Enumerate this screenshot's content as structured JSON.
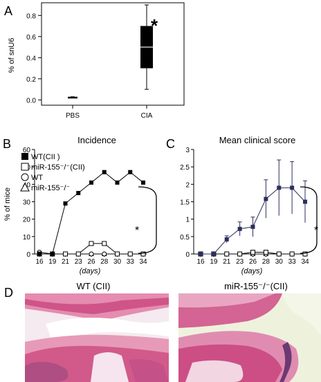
{
  "panel_letters": {
    "a": "A",
    "b": "B",
    "c": "C",
    "d": "D"
  },
  "panel_a": {
    "ylabel": "% of snU6",
    "star": "*"
  },
  "panel_b": {
    "title": "Incidence",
    "ylabel": "% of mice",
    "xlabel": "(days)",
    "star": "*",
    "legend": [
      "WT(CII )",
      "miR-155⁻/⁻(CII)",
      "WT",
      "miR-155⁻/⁻"
    ]
  },
  "panel_c": {
    "title": "Mean clinical score",
    "xlabel": "(days)",
    "star": "*"
  },
  "panel_d": {
    "left_title": "WT (CII)",
    "right_title": "miR-155⁻/⁻(CII)"
  },
  "colors": {
    "box_fill": "#000000",
    "wt_cii_line": "#000000",
    "score_wt_cii_line": "#2c2f5c",
    "tissue_pink": "#d9628f",
    "tissue_light": "#f2d6e2",
    "tissue_purple": "#7b3f7a",
    "background_green": "#eef2dd"
  },
  "chart_data": [
    {
      "type": "box",
      "panel": "A",
      "ylabel": "% of snU6",
      "categories": [
        "PBS",
        "CIA"
      ],
      "ylim": [
        -0.05,
        0.92
      ],
      "yticks": [
        0.0,
        0.2,
        0.4,
        0.6,
        0.8
      ],
      "boxes": [
        {
          "category": "PBS",
          "min": 0.02,
          "q1": 0.02,
          "median": 0.025,
          "q3": 0.03,
          "max": 0.03
        },
        {
          "category": "CIA",
          "min": 0.1,
          "q1": 0.3,
          "median": 0.5,
          "q3": 0.7,
          "max": 0.9
        }
      ],
      "annotation": "*"
    },
    {
      "type": "line",
      "panel": "B",
      "title": "Incidence",
      "ylabel": "% of mice",
      "xlabel": "(days)",
      "x": [
        16,
        19,
        21,
        23,
        26,
        28,
        30,
        33,
        34
      ],
      "xtick_labels": [
        "16",
        "19",
        "21",
        "23",
        "26",
        "28",
        "30",
        "33",
        "34"
      ],
      "ylim": [
        0,
        60
      ],
      "yticks": [
        0,
        10,
        20,
        30,
        40,
        50,
        60
      ],
      "series": [
        {
          "name": "WT(CII )",
          "marker": "filled-square",
          "values": [
            0,
            0,
            29,
            35,
            41,
            47,
            41,
            47,
            41
          ]
        },
        {
          "name": "miR-155⁻/⁻(CII)",
          "marker": "open-square",
          "values": [
            0,
            0,
            0,
            0,
            6,
            6,
            0,
            0,
            0
          ]
        },
        {
          "name": "WT",
          "marker": "open-circle",
          "values": [
            1,
            0,
            0,
            0,
            0,
            0,
            0,
            0,
            0
          ]
        },
        {
          "name": "miR-155⁻/⁻",
          "marker": "open-triangle",
          "values": [
            0,
            0,
            0,
            0,
            0,
            0,
            0,
            0,
            0
          ]
        }
      ],
      "annotation": "*"
    },
    {
      "type": "line",
      "panel": "C",
      "title": "Mean clinical score",
      "xlabel": "(days)",
      "x": [
        16,
        19,
        21,
        23,
        26,
        28,
        30,
        33,
        34
      ],
      "xtick_labels": [
        "16",
        "19",
        "21",
        "23",
        "26",
        "28",
        "30",
        "33",
        "34"
      ],
      "ylim": [
        0,
        3
      ],
      "yticks": [
        0,
        0.5,
        1,
        1.5,
        2,
        2.5,
        3
      ],
      "ytick_labels": [
        "0",
        "0.5",
        "1",
        "1.5",
        "2",
        "2.5",
        "3"
      ],
      "series": [
        {
          "name": "WT(CII )",
          "marker": "filled-square",
          "values": [
            0,
            0,
            0.42,
            0.72,
            0.78,
            1.58,
            1.9,
            1.9,
            1.5
          ],
          "errors": [
            0,
            0,
            0.1,
            0.2,
            0.28,
            0.55,
            0.8,
            0.75,
            0.6
          ]
        },
        {
          "name": "miR-155⁻/⁻(CII)",
          "marker": "open-square",
          "values": [
            0,
            0,
            0,
            0,
            0.05,
            0.05,
            0,
            0,
            0
          ],
          "errors": [
            0,
            0,
            0,
            0,
            0,
            0,
            0,
            0,
            0
          ]
        },
        {
          "name": "WT",
          "marker": "open-circle",
          "values": [
            0,
            0,
            0,
            0,
            0,
            0,
            0,
            0,
            0
          ],
          "errors": [
            0,
            0,
            0,
            0,
            0,
            0,
            0,
            0,
            0
          ]
        },
        {
          "name": "miR-155⁻/⁻",
          "marker": "open-triangle",
          "values": [
            0,
            0,
            0,
            0,
            0,
            0,
            0,
            0,
            0
          ],
          "errors": [
            0,
            0,
            0,
            0,
            0,
            0,
            0,
            0,
            0
          ]
        }
      ],
      "annotation": "*"
    }
  ]
}
